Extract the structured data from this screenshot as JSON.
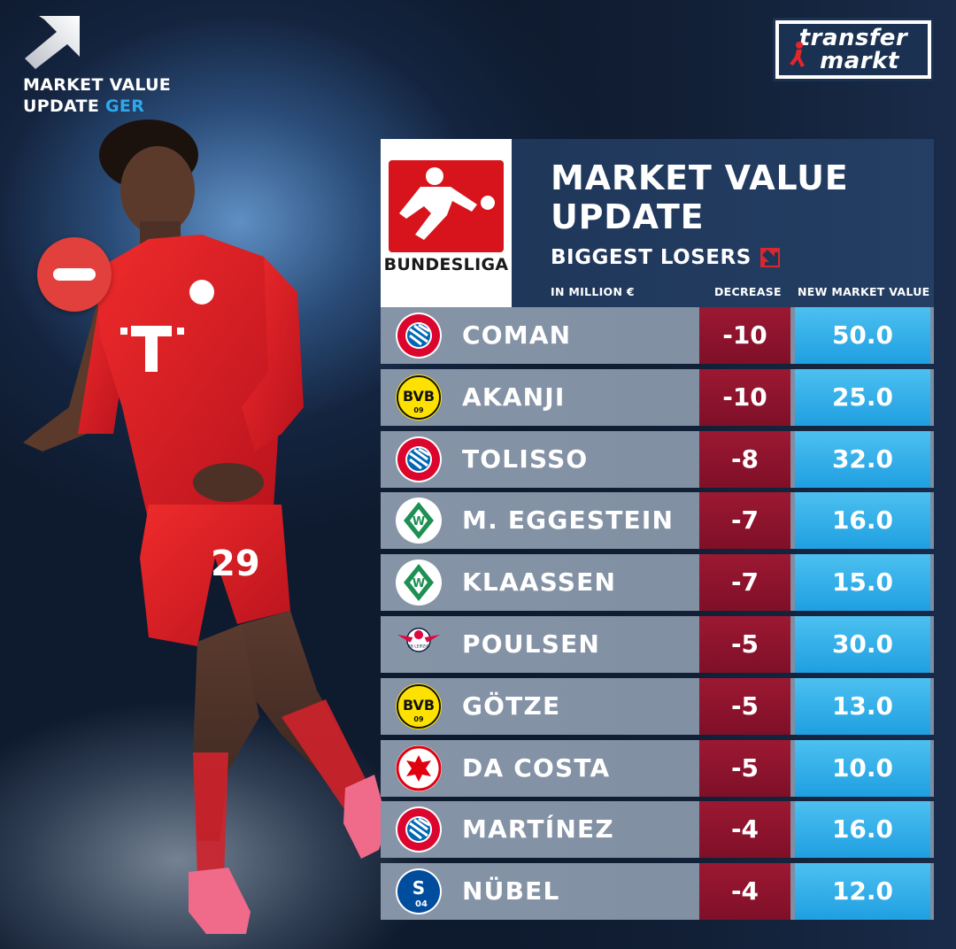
{
  "badge": {
    "line1": "MARKET VALUE",
    "line2_prefix": "UPDATE ",
    "line2_accent": "GER"
  },
  "logo": {
    "line1": "transfer",
    "line2": "markt"
  },
  "header": {
    "league_name": "BUNDESLIGA",
    "title_line1": "MARKET VALUE",
    "title_line2": "UPDATE",
    "subtitle": "BIGGEST LOSERS",
    "col_unit": "IN MILLION €",
    "col_decrease": "DECREASE",
    "col_new_value": "NEW MARKET VALUE"
  },
  "rows": [
    {
      "club_icon": "fc-bayern-crest",
      "player": "COMAN",
      "decrease": "-10",
      "new_value": "50.0"
    },
    {
      "club_icon": "bvb-crest",
      "player": "AKANJI",
      "decrease": "-10",
      "new_value": "25.0"
    },
    {
      "club_icon": "fc-bayern-crest",
      "player": "TOLISSO",
      "decrease": "-8",
      "new_value": "32.0"
    },
    {
      "club_icon": "werder-crest",
      "player": "M. EGGESTEIN",
      "decrease": "-7",
      "new_value": "16.0"
    },
    {
      "club_icon": "werder-crest",
      "player": "KLAASSEN",
      "decrease": "-7",
      "new_value": "15.0"
    },
    {
      "club_icon": "rb-leipzig-crest",
      "player": "POULSEN",
      "decrease": "-5",
      "new_value": "30.0"
    },
    {
      "club_icon": "bvb-crest",
      "player": "GÖTZE",
      "decrease": "-5",
      "new_value": "13.0"
    },
    {
      "club_icon": "eintracht-crest",
      "player": "DA COSTA",
      "decrease": "-5",
      "new_value": "10.0"
    },
    {
      "club_icon": "fc-bayern-crest",
      "player": "MARTÍNEZ",
      "decrease": "-4",
      "new_value": "16.0"
    },
    {
      "club_icon": "schalke-crest",
      "player": "NÜBEL",
      "decrease": "-4",
      "new_value": "12.0"
    }
  ],
  "colors": {
    "decrease_bg": "#8f1430",
    "new_value_bg": "#2aa9e6",
    "accent_blue": "#2ea8ec",
    "bundesliga_red": "#d7141c"
  }
}
